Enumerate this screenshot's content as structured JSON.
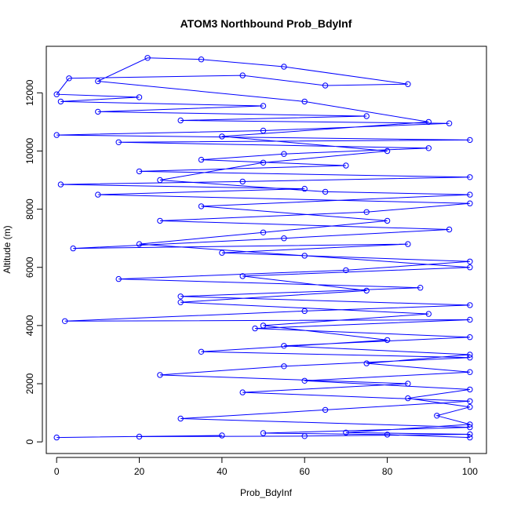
{
  "chart_data": {
    "type": "scatter",
    "title": "ATOM3 Northbound Prob_BdyInf",
    "xlabel": "Prob_BdyInf",
    "ylabel": "Altitude (m)",
    "xlim": [
      -2.5,
      104
    ],
    "ylim": [
      -400,
      13600
    ],
    "xticks": [
      0,
      20,
      40,
      60,
      80,
      100
    ],
    "yticks": [
      0,
      2000,
      4000,
      6000,
      8000,
      10000,
      12000
    ],
    "grid": false,
    "marker": "open-circle",
    "connect_points": true,
    "series_color": "#0000ff",
    "series": [
      {
        "points": [
          [
            0,
            150
          ],
          [
            40,
            220
          ],
          [
            20,
            180
          ],
          [
            60,
            200
          ],
          [
            100,
            260
          ],
          [
            70,
            320
          ],
          [
            100,
            600
          ],
          [
            92,
            900
          ],
          [
            100,
            1200
          ],
          [
            85,
            1500
          ],
          [
            100,
            1800
          ],
          [
            60,
            2100
          ],
          [
            100,
            2400
          ],
          [
            75,
            2700
          ],
          [
            100,
            3000
          ],
          [
            55,
            3300
          ],
          [
            100,
            3600
          ],
          [
            48,
            3900
          ],
          [
            100,
            4200
          ],
          [
            2,
            4150
          ],
          [
            60,
            4500
          ],
          [
            100,
            4700
          ],
          [
            30,
            5000
          ],
          [
            88,
            5300
          ],
          [
            15,
            5600
          ],
          [
            70,
            5900
          ],
          [
            100,
            6200
          ],
          [
            40,
            6500
          ],
          [
            85,
            6800
          ],
          [
            4,
            6650
          ],
          [
            55,
            7000
          ],
          [
            95,
            7300
          ],
          [
            25,
            7600
          ],
          [
            75,
            7900
          ],
          [
            100,
            8200
          ],
          [
            10,
            8500
          ],
          [
            60,
            8700
          ],
          [
            1,
            8850
          ],
          [
            45,
            8950
          ],
          [
            100,
            9100
          ],
          [
            20,
            9300
          ],
          [
            70,
            9500
          ],
          [
            35,
            9700
          ],
          [
            55,
            9900
          ],
          [
            90,
            10100
          ],
          [
            15,
            10300
          ],
          [
            100,
            10380
          ],
          [
            0,
            10550
          ],
          [
            50,
            10700
          ],
          [
            95,
            10950
          ],
          [
            30,
            11050
          ],
          [
            75,
            11200
          ],
          [
            10,
            11350
          ],
          [
            50,
            11550
          ],
          [
            1,
            11700
          ],
          [
            20,
            11850
          ],
          [
            0,
            11950
          ],
          [
            3,
            12500
          ],
          [
            45,
            12600
          ],
          [
            65,
            12250
          ],
          [
            85,
            12300
          ],
          [
            55,
            12900
          ],
          [
            35,
            13150
          ],
          [
            22,
            13200
          ],
          [
            10,
            12400
          ],
          [
            60,
            11700
          ],
          [
            90,
            11000
          ],
          [
            40,
            10500
          ],
          [
            80,
            10000
          ],
          [
            50,
            9600
          ],
          [
            25,
            9000
          ],
          [
            65,
            8600
          ],
          [
            100,
            8500
          ],
          [
            35,
            8100
          ],
          [
            80,
            7600
          ],
          [
            50,
            7200
          ],
          [
            20,
            6800
          ],
          [
            60,
            6400
          ],
          [
            100,
            6000
          ],
          [
            45,
            5700
          ],
          [
            75,
            5200
          ],
          [
            30,
            4800
          ],
          [
            90,
            4400
          ],
          [
            50,
            4000
          ],
          [
            80,
            3500
          ],
          [
            35,
            3100
          ],
          [
            100,
            2900
          ],
          [
            55,
            2600
          ],
          [
            25,
            2300
          ],
          [
            85,
            2000
          ],
          [
            45,
            1700
          ],
          [
            100,
            1400
          ],
          [
            65,
            1100
          ],
          [
            30,
            800
          ],
          [
            100,
            500
          ],
          [
            50,
            300
          ],
          [
            80,
            250
          ],
          [
            100,
            150
          ]
        ]
      }
    ]
  }
}
